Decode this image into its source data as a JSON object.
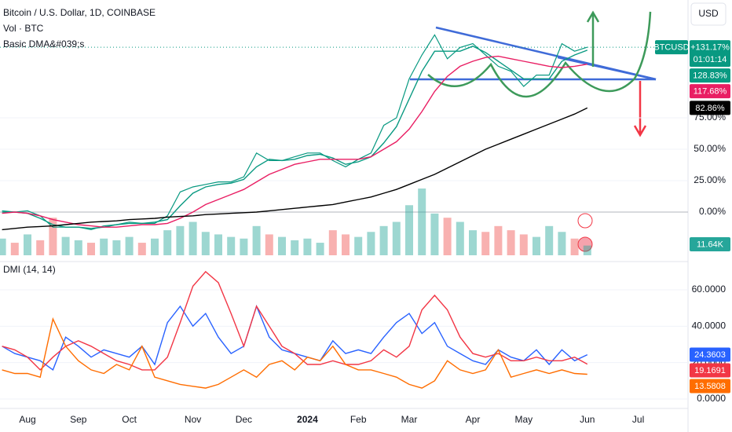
{
  "chart_data": [
    {
      "type": "line",
      "title": "Bitcoin / U.S. Dollar, 1D, COINBASE",
      "indicators": [
        "Vol · BTC",
        "Basic DMA&#039;s"
      ],
      "symbol": "BTCUSD",
      "countdown": "01:01:14",
      "currency": "USD",
      "categories": [
        null,
        null,
        "Aug",
        null,
        null,
        null,
        "Sep",
        null,
        null,
        null,
        "Oct",
        null,
        null,
        null,
        null,
        "Nov",
        null,
        null,
        null,
        "Dec",
        null,
        null,
        null,
        null,
        "2024",
        null,
        null,
        null,
        "Feb",
        null,
        null,
        null,
        "Mar",
        null,
        null,
        null,
        null,
        "Apr",
        null,
        null,
        null,
        "May",
        null,
        null,
        null,
        null,
        "Jun",
        null,
        null,
        null,
        "Jul"
      ],
      "ylim": [
        -34.4,
        168.75
      ],
      "yticks": [
        {
          "value": 0,
          "label": "0.00%"
        },
        {
          "value": 25,
          "label": "25.00%"
        },
        {
          "value": 50,
          "label": "50.00%"
        },
        {
          "value": 75,
          "label": "75.00%"
        }
      ],
      "grid": true,
      "series": [
        {
          "color": "#089981",
          "value_label": "+131.17%",
          "values": [
            1,
            0,
            1,
            -3,
            -12,
            -12,
            -12,
            -14,
            -11,
            -10,
            -8,
            -9,
            -9,
            -3,
            16,
            20,
            22,
            24,
            24,
            28,
            47,
            41,
            41,
            44,
            47,
            47,
            41,
            36,
            42,
            47,
            69,
            75,
            106,
            125,
            141,
            122,
            131,
            134,
            125,
            116,
            112,
            100,
            109,
            109,
            134,
            128,
            131.17,
            null,
            null,
            null,
            null
          ]
        },
        {
          "color": "#089981",
          "value_label": "128.83%",
          "values": [
            0,
            0,
            -1,
            -5,
            -10,
            -12,
            -12,
            -13,
            -12,
            -10,
            -9,
            -9,
            -8,
            -6,
            5,
            15,
            20,
            22,
            23,
            26,
            36,
            42,
            41,
            42,
            45,
            46,
            43,
            38,
            40,
            44,
            55,
            68,
            90,
            112,
            128,
            128,
            128,
            132,
            127,
            120,
            113,
            106,
            106,
            106,
            120,
            125,
            128.83,
            null,
            null,
            null,
            null
          ]
        },
        {
          "color": "#e91e63",
          "value_label": "117.68%",
          "values": [
            -1,
            0,
            -1,
            -3,
            -6,
            -8,
            -10,
            -11,
            -12,
            -12,
            -11,
            -10,
            -10,
            -9,
            -5,
            0,
            6,
            10,
            14,
            18,
            24,
            30,
            34,
            38,
            40,
            42,
            42,
            42,
            42,
            44,
            50,
            56,
            66,
            80,
            96,
            108,
            116,
            120,
            123,
            124,
            122,
            120,
            118,
            116,
            115,
            116,
            117.68,
            null,
            null,
            null,
            null
          ]
        },
        {
          "color": "#000000",
          "value_label": "82.86%",
          "values": [
            -14,
            -13,
            -12,
            -11.5,
            -11,
            -10,
            -9,
            -8,
            -7.5,
            -7,
            -6,
            -5.5,
            -5,
            -4,
            -3.5,
            -3,
            -2,
            -1.5,
            -1,
            -0.5,
            0,
            1,
            2,
            3,
            4,
            5,
            6,
            8,
            10,
            12,
            15,
            18,
            22,
            26,
            30,
            35,
            40,
            45,
            50,
            54,
            58,
            62,
            66,
            70,
            74,
            78,
            82.86,
            null,
            null,
            null,
            null
          ]
        }
      ]
    },
    {
      "type": "bar",
      "up_color": "#26a69a",
      "down_color": "#ef5350",
      "value_label": "11.64K",
      "values": [
        20,
        15,
        25,
        18,
        45,
        22,
        18,
        15,
        20,
        18,
        22,
        15,
        20,
        30,
        35,
        40,
        28,
        25,
        22,
        20,
        35,
        25,
        22,
        18,
        20,
        15,
        30,
        25,
        22,
        28,
        35,
        40,
        60,
        80,
        50,
        45,
        40,
        30,
        28,
        35,
        30,
        25,
        22,
        35,
        28,
        20,
        11.64,
        null,
        null,
        null,
        null
      ]
    },
    {
      "type": "line",
      "title": "DMI (14, 14)",
      "ylim": [
        -5.2,
        73.4
      ],
      "yticks": [
        {
          "value": 0,
          "label": "0.0000"
        },
        {
          "value": 20,
          "label": "20.0000"
        },
        {
          "value": 40,
          "label": "40.0000"
        },
        {
          "value": 60,
          "label": "60.0000"
        }
      ],
      "grid": true,
      "series": [
        {
          "color": "#2962ff",
          "value_label": "24.3603",
          "values": [
            29,
            25,
            23,
            21,
            16,
            34,
            29,
            23,
            27,
            25,
            23,
            29,
            19,
            42,
            51,
            40,
            47,
            34,
            25,
            29,
            51,
            34,
            27,
            25,
            23,
            21,
            32,
            25,
            27,
            25,
            34,
            42,
            47,
            36,
            42,
            29,
            25,
            21,
            19,
            27,
            23,
            21,
            27,
            19,
            27,
            21,
            24.3603,
            null,
            null,
            null,
            null
          ]
        },
        {
          "color": "#f23645",
          "value_label": "19.1691",
          "values": [
            29,
            27,
            23,
            16,
            23,
            29,
            32,
            29,
            25,
            21,
            19,
            16,
            16,
            23,
            42,
            62,
            70,
            64,
            47,
            29,
            51,
            40,
            29,
            25,
            19,
            19,
            21,
            19,
            19,
            21,
            27,
            23,
            29,
            49,
            57,
            49,
            34,
            25,
            23,
            25,
            21,
            21,
            23,
            21,
            21,
            23,
            19.1691,
            null,
            null,
            null,
            null
          ]
        },
        {
          "color": "#ff6d00",
          "value_label": "13.5808",
          "values": [
            16,
            14,
            14,
            12,
            44,
            29,
            21,
            16,
            14,
            19,
            16,
            29,
            12,
            10,
            8,
            7,
            6,
            8,
            12,
            16,
            12,
            19,
            21,
            16,
            23,
            21,
            29,
            19,
            16,
            16,
            14,
            12,
            8,
            6,
            10,
            21,
            16,
            14,
            16,
            27,
            12,
            14,
            16,
            14,
            16,
            14,
            13.5808,
            null,
            null,
            null,
            null
          ]
        }
      ]
    }
  ]
}
